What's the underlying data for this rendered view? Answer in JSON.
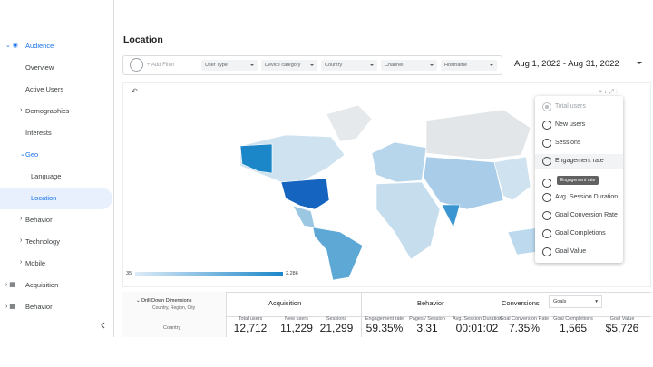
{
  "sidebar": {
    "items": [
      "Audience",
      "Overview",
      "Active Users",
      "Demographics",
      "Interests",
      "Geo",
      "Language",
      "Location",
      "Behavior",
      "Technology",
      "Mobile",
      "Acquisition",
      "Behavior"
    ]
  },
  "header": {
    "title": "Location",
    "date_range": "Aug 1, 2022 - Aug 31, 2022"
  },
  "filters": {
    "add_filter": "+ Add Filter",
    "dropdowns": [
      "User Type",
      "Device category",
      "Country",
      "Channel",
      "Hostname"
    ]
  },
  "map": {
    "legend_min": "35",
    "legend_max": "2,286"
  },
  "metric_menu": {
    "options": [
      "Total users",
      "New users",
      "Sessions",
      "Engagement rate",
      "Avg. Session Duration",
      "Goal Conversion Rate",
      "Goal Completions",
      "Goal Value"
    ],
    "tooltip": "Engagement rate"
  },
  "table": {
    "drill_down": "Drill Down Dimensions",
    "drill_down_sub": "Country, Region, City",
    "dimension": "Country",
    "groups": [
      "Acquisition",
      "Behavior",
      "Conversions"
    ],
    "goal_select": "Goals",
    "columns": [
      "Total users",
      "New users",
      "Sessions",
      "Engagement rate",
      "Pages / Session",
      "Avg. Session Duration",
      "Goal Conversion Rate",
      "Goal Completions",
      "Goal Value"
    ],
    "totals": [
      "12,712",
      "11,229",
      "21,299",
      "59.35%",
      "3.31",
      "00:01:02",
      "7.35%",
      "1,565",
      "$5,726"
    ]
  }
}
